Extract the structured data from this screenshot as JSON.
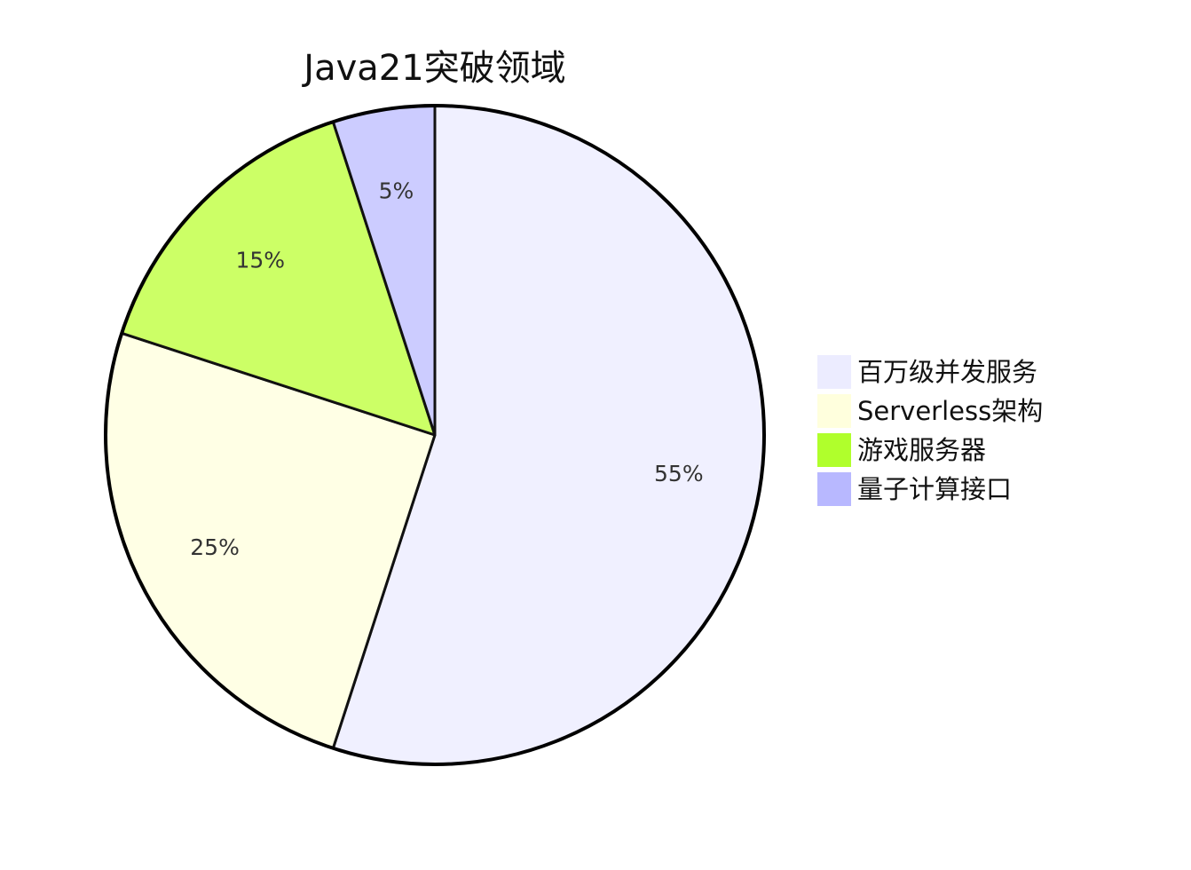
{
  "chart_data": {
    "type": "pie",
    "title": "Java21突破领域",
    "slices": [
      {
        "label": "百万级并发服务",
        "value": 55,
        "display": "55%",
        "color": "#f0f0ff"
      },
      {
        "label": "Serverless架构",
        "value": 25,
        "display": "25%",
        "color": "#ffffe5"
      },
      {
        "label": "游戏服务器",
        "value": 15,
        "display": "15%",
        "color": "#ccff66"
      },
      {
        "label": "量子计算接口",
        "value": 5,
        "display": "5%",
        "color": "#ccccff"
      }
    ],
    "legend": {
      "placement": "right",
      "swatch_colors": [
        "#ececff",
        "#ffffdd",
        "#b0ff2c",
        "#b8b8ff"
      ]
    },
    "start_angle": "top",
    "direction": "clockwise"
  }
}
